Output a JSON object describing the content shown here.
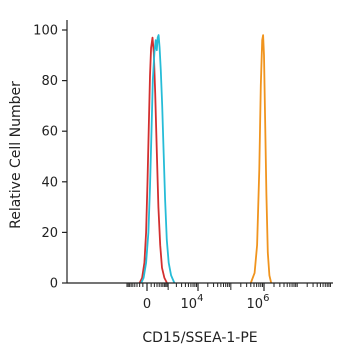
{
  "chart_data": {
    "type": "line",
    "title": "",
    "xlabel": "CD15/SSEA-1-PE",
    "ylabel": "Relative Cell Number",
    "x_scale": "biexponential",
    "x_ticks": [
      {
        "value": 0,
        "base": "0",
        "sup": ""
      },
      {
        "value": 10000,
        "base": "10",
        "sup": "4"
      },
      {
        "value": 1000000,
        "base": "10",
        "sup": "6"
      }
    ],
    "ylim": [
      0,
      100
    ],
    "y_ticks": [
      0,
      20,
      40,
      60,
      80,
      100
    ],
    "grid": false,
    "legend": "none",
    "series": [
      {
        "color": "#d32f2f",
        "points": [
          [
            -200,
            0
          ],
          [
            -120,
            2
          ],
          [
            -60,
            8
          ],
          [
            -20,
            20
          ],
          [
            10,
            40
          ],
          [
            40,
            62
          ],
          [
            70,
            82
          ],
          [
            100,
            93
          ],
          [
            140,
            97
          ],
          [
            180,
            91
          ],
          [
            230,
            75
          ],
          [
            290,
            52
          ],
          [
            360,
            30
          ],
          [
            450,
            15
          ],
          [
            550,
            6
          ],
          [
            700,
            2
          ],
          [
            900,
            0
          ]
        ]
      },
      {
        "color": "#26bcd7",
        "points": [
          [
            -150,
            0
          ],
          [
            -80,
            2
          ],
          [
            -20,
            8
          ],
          [
            30,
            20
          ],
          [
            70,
            38
          ],
          [
            110,
            60
          ],
          [
            150,
            80
          ],
          [
            200,
            91
          ],
          [
            250,
            96
          ],
          [
            290,
            92
          ],
          [
            330,
            97
          ],
          [
            370,
            98
          ],
          [
            420,
            93
          ],
          [
            480,
            84
          ],
          [
            560,
            70
          ],
          [
            650,
            52
          ],
          [
            750,
            33
          ],
          [
            880,
            17
          ],
          [
            1050,
            8
          ],
          [
            1300,
            3
          ],
          [
            1700,
            0
          ]
        ]
      },
      {
        "color": "#f0941e",
        "points": [
          [
            400000,
            0
          ],
          [
            520000,
            4
          ],
          [
            620000,
            15
          ],
          [
            720000,
            45
          ],
          [
            800000,
            78
          ],
          [
            880000,
            96
          ],
          [
            940000,
            98
          ],
          [
            1000000,
            90
          ],
          [
            1080000,
            65
          ],
          [
            1180000,
            35
          ],
          [
            1300000,
            12
          ],
          [
            1450000,
            3
          ],
          [
            1650000,
            0
          ]
        ]
      }
    ]
  }
}
